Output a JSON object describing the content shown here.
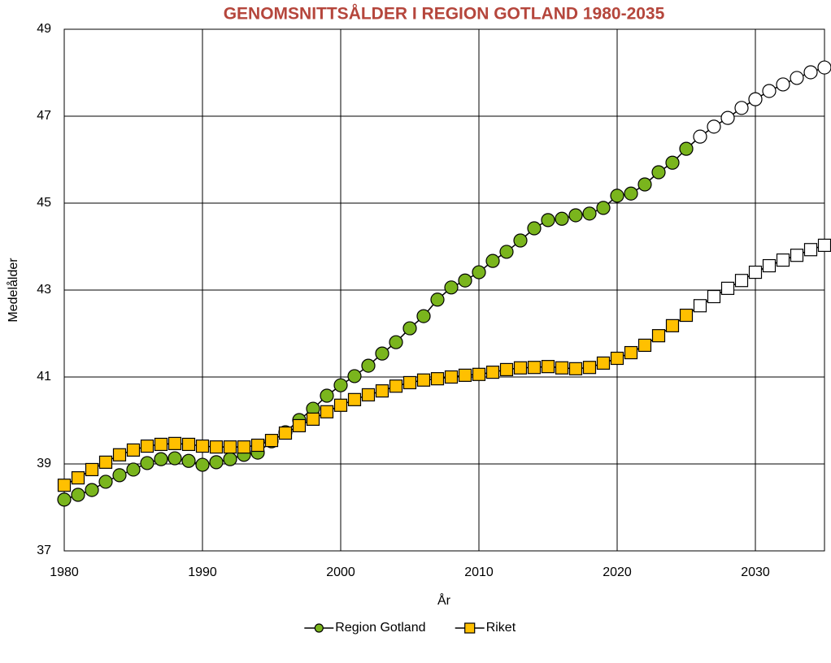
{
  "chart_data": {
    "type": "line",
    "title": "GENOMSNITTSÅLDER I REGION GOTLAND 1980-2035",
    "x_label": "År",
    "y_label": "Medelålder",
    "x": [
      1980,
      1981,
      1982,
      1983,
      1984,
      1985,
      1986,
      1987,
      1988,
      1989,
      1990,
      1991,
      1992,
      1993,
      1994,
      1995,
      1996,
      1997,
      1998,
      1999,
      2000,
      2001,
      2002,
      2003,
      2004,
      2005,
      2006,
      2007,
      2008,
      2009,
      2010,
      2011,
      2012,
      2013,
      2014,
      2015,
      2016,
      2017,
      2018,
      2019,
      2020,
      2021,
      2022,
      2023,
      2024,
      2025,
      2026,
      2027,
      2028,
      2029,
      2030,
      2031,
      2032,
      2033,
      2034,
      2035
    ],
    "series": [
      {
        "name": "Region Gotland",
        "color": "#7ab51d",
        "marker": "circle",
        "values": [
          38.18,
          38.29,
          38.4,
          38.59,
          38.74,
          38.87,
          39.02,
          39.11,
          39.13,
          39.07,
          38.98,
          39.04,
          39.11,
          39.21,
          39.26,
          39.52,
          39.73,
          40.01,
          40.27,
          40.57,
          40.81,
          41.02,
          41.26,
          41.54,
          41.8,
          42.12,
          42.4,
          42.78,
          43.06,
          43.22,
          43.41,
          43.67,
          43.88,
          44.14,
          44.42,
          44.61,
          44.64,
          44.72,
          44.76,
          44.89,
          45.17,
          45.22,
          45.43,
          45.71,
          45.93,
          46.25,
          46.53,
          46.76,
          46.96,
          47.19,
          47.39,
          47.58,
          47.73,
          47.88,
          48.01,
          48.12
        ]
      },
      {
        "name": "Riket",
        "color": "#ffc000",
        "marker": "square",
        "values": [
          38.51,
          38.68,
          38.87,
          39.04,
          39.21,
          39.32,
          39.41,
          39.45,
          39.47,
          39.45,
          39.41,
          39.39,
          39.39,
          39.39,
          39.43,
          39.54,
          39.71,
          39.88,
          40.03,
          40.2,
          40.35,
          40.48,
          40.59,
          40.68,
          40.79,
          40.87,
          40.93,
          40.96,
          41.0,
          41.04,
          41.06,
          41.11,
          41.17,
          41.21,
          41.22,
          41.24,
          41.21,
          41.19,
          41.22,
          41.32,
          41.43,
          41.56,
          41.73,
          41.95,
          42.18,
          42.42,
          42.64,
          42.85,
          43.04,
          43.22,
          43.41,
          43.56,
          43.69,
          43.8,
          43.93,
          44.03
        ]
      }
    ],
    "line_color": "#000000",
    "forecast_from": 2026,
    "forecast_fill": "#ffffff",
    "xlim": [
      1980,
      2035
    ],
    "xticks": [
      1980,
      1990,
      2000,
      2010,
      2020,
      2030
    ],
    "ylim": [
      37,
      49
    ],
    "yticks": [
      37,
      39,
      41,
      43,
      45,
      47,
      49
    ],
    "grid": true,
    "legend": "bottom",
    "title_color": "#b5463c"
  }
}
